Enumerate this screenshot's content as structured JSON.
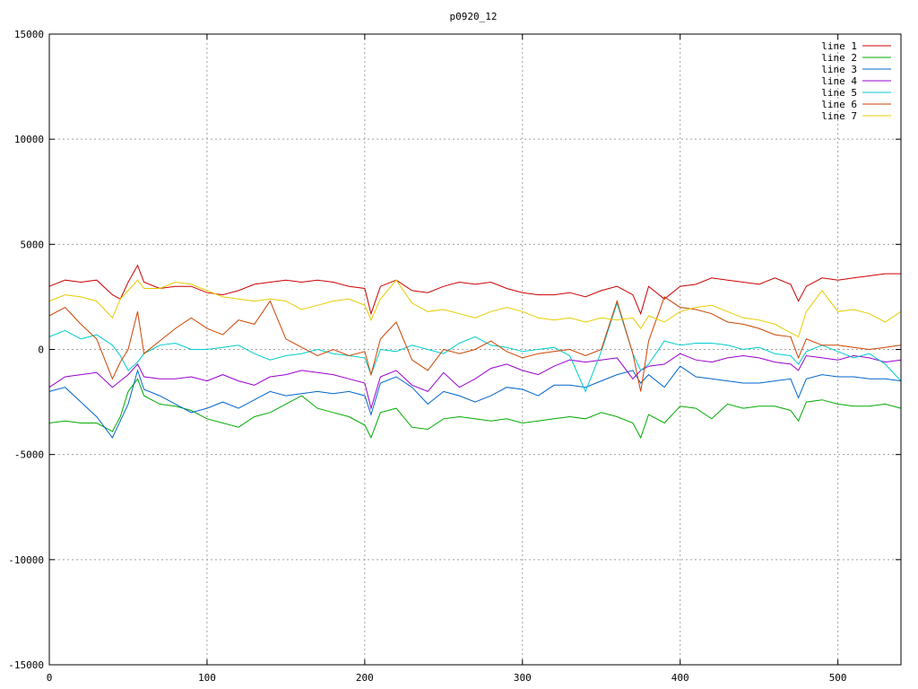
{
  "chart_data": {
    "type": "line",
    "title": "p0920_12",
    "xlabel": "",
    "ylabel": "",
    "xlim": [
      0,
      540
    ],
    "ylim": [
      -15000,
      15000
    ],
    "x_ticks": [
      0,
      100,
      200,
      300,
      400,
      500
    ],
    "y_ticks": [
      -15000,
      -10000,
      -5000,
      0,
      5000,
      10000,
      15000
    ],
    "grid": true,
    "legend_position": "top-right",
    "x": [
      0,
      10,
      20,
      30,
      40,
      45,
      50,
      56,
      60,
      70,
      80,
      90,
      100,
      110,
      120,
      130,
      140,
      150,
      160,
      170,
      180,
      190,
      200,
      204,
      210,
      220,
      230,
      240,
      250,
      260,
      270,
      280,
      290,
      300,
      310,
      320,
      330,
      340,
      350,
      360,
      370,
      375,
      380,
      390,
      400,
      410,
      420,
      430,
      440,
      450,
      460,
      470,
      475,
      480,
      490,
      500,
      510,
      520,
      530,
      540
    ],
    "series": [
      {
        "name": "line 1",
        "color": "#cc0000",
        "values": [
          3000,
          3300,
          3200,
          3300,
          2600,
          2400,
          3200,
          4000,
          3200,
          2900,
          3000,
          3000,
          2700,
          2600,
          2800,
          3100,
          3200,
          3300,
          3200,
          3300,
          3200,
          3000,
          2900,
          1700,
          3000,
          3300,
          2800,
          2700,
          3000,
          3200,
          3100,
          3200,
          2900,
          2700,
          2600,
          2600,
          2700,
          2500,
          2800,
          3000,
          2600,
          1700,
          3000,
          2400,
          3000,
          3100,
          3400,
          3300,
          3200,
          3100,
          3400,
          3100,
          2300,
          3000,
          3400,
          3300,
          3400,
          3500,
          3600,
          3600
        ]
      },
      {
        "name": "line 2",
        "color": "#00aa00",
        "values": [
          -3500,
          -3400,
          -3500,
          -3500,
          -3900,
          -3200,
          -2000,
          -1400,
          -2200,
          -2600,
          -2700,
          -2900,
          -3300,
          -3500,
          -3700,
          -3200,
          -3000,
          -2600,
          -2200,
          -2800,
          -3000,
          -3200,
          -3600,
          -4200,
          -3000,
          -2800,
          -3700,
          -3800,
          -3300,
          -3200,
          -3300,
          -3400,
          -3300,
          -3500,
          -3400,
          -3300,
          -3200,
          -3300,
          -3000,
          -3200,
          -3500,
          -4200,
          -3100,
          -3500,
          -2700,
          -2800,
          -3300,
          -2600,
          -2800,
          -2700,
          -2700,
          -2900,
          -3400,
          -2500,
          -2400,
          -2600,
          -2700,
          -2700,
          -2600,
          -2800
        ]
      },
      {
        "name": "line 3",
        "color": "#0066cc",
        "values": [
          -2000,
          -1800,
          -2500,
          -3200,
          -4200,
          -3400,
          -2600,
          -1000,
          -1900,
          -2200,
          -2600,
          -3000,
          -2800,
          -2500,
          -2800,
          -2400,
          -2000,
          -2200,
          -2100,
          -2000,
          -2100,
          -2000,
          -2200,
          -3100,
          -1600,
          -1300,
          -1800,
          -2600,
          -2000,
          -2200,
          -2500,
          -2200,
          -1800,
          -1900,
          -2200,
          -1700,
          -1700,
          -1800,
          -1500,
          -1200,
          -1000,
          -1600,
          -1200,
          -1800,
          -800,
          -1300,
          -1400,
          -1500,
          -1600,
          -1600,
          -1500,
          -1400,
          -2300,
          -1400,
          -1200,
          -1300,
          -1300,
          -1400,
          -1400,
          -1500
        ]
      },
      {
        "name": "line 4",
        "color": "#9900cc",
        "values": [
          -1800,
          -1300,
          -1200,
          -1100,
          -1800,
          -1500,
          -1200,
          -700,
          -1300,
          -1400,
          -1400,
          -1300,
          -1500,
          -1200,
          -1500,
          -1700,
          -1300,
          -1200,
          -1000,
          -1100,
          -1200,
          -1400,
          -1600,
          -2800,
          -1300,
          -1000,
          -1700,
          -2000,
          -1100,
          -1800,
          -1400,
          -900,
          -700,
          -1000,
          -1200,
          -800,
          -500,
          -600,
          -500,
          -400,
          -1400,
          -1000,
          -800,
          -700,
          -200,
          -500,
          -600,
          -400,
          -300,
          -400,
          -600,
          -700,
          -1000,
          -300,
          -400,
          -500,
          -300,
          -400,
          -600,
          -500
        ]
      },
      {
        "name": "line 5",
        "color": "#00cccc",
        "values": [
          600,
          900,
          500,
          700,
          200,
          -300,
          -1000,
          -600,
          -200,
          200,
          300,
          0,
          0,
          100,
          200,
          -200,
          -500,
          -300,
          -200,
          0,
          -200,
          -300,
          -400,
          -1200,
          0,
          -100,
          200,
          0,
          -200,
          300,
          600,
          200,
          100,
          -100,
          0,
          100,
          -300,
          -2000,
          -100,
          2200,
          -200,
          -1000,
          -700,
          400,
          200,
          300,
          300,
          200,
          0,
          100,
          -200,
          -300,
          -700,
          -100,
          200,
          -100,
          -400,
          -200,
          -700,
          -1500
        ]
      },
      {
        "name": "line 6",
        "color": "#cc4400",
        "values": [
          1600,
          2000,
          1200,
          500,
          -1400,
          -600,
          0,
          1800,
          -200,
          400,
          1000,
          1500,
          1000,
          700,
          1400,
          1200,
          2300,
          500,
          100,
          -300,
          0,
          -300,
          -100,
          -1200,
          500,
          1300,
          -500,
          -1000,
          0,
          -200,
          0,
          400,
          -100,
          -400,
          -200,
          -100,
          0,
          -300,
          0,
          2300,
          -200,
          -2000,
          400,
          2500,
          2000,
          1900,
          1700,
          1300,
          1200,
          1000,
          700,
          600,
          -400,
          500,
          200,
          200,
          100,
          0,
          100,
          200
        ]
      },
      {
        "name": "line 7",
        "color": "#e6cc00",
        "values": [
          2300,
          2600,
          2500,
          2300,
          1500,
          2400,
          2800,
          3300,
          2900,
          2900,
          3200,
          3100,
          2800,
          2500,
          2400,
          2300,
          2400,
          2300,
          1900,
          2100,
          2300,
          2400,
          2100,
          1400,
          2400,
          3300,
          2200,
          1800,
          1900,
          1700,
          1500,
          1800,
          2000,
          1800,
          1500,
          1400,
          1500,
          1300,
          1500,
          1400,
          1500,
          1000,
          1600,
          1300,
          1800,
          2000,
          2100,
          1800,
          1500,
          1400,
          1200,
          800,
          600,
          1800,
          2800,
          1800,
          1900,
          1700,
          1300,
          1800
        ]
      }
    ]
  }
}
